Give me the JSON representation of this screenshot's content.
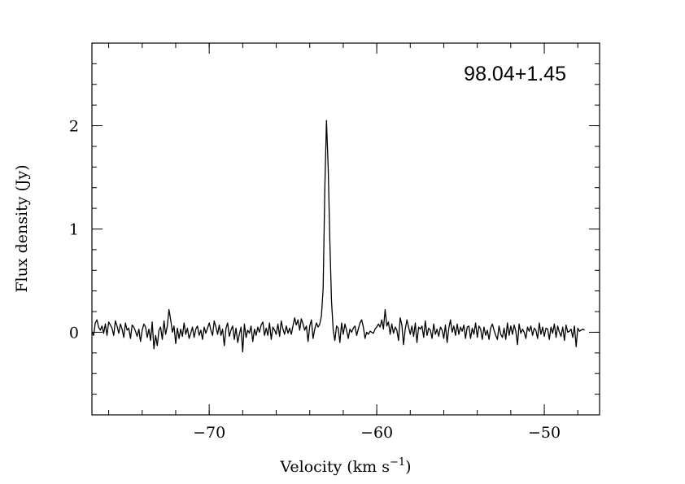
{
  "chart_data": {
    "type": "line",
    "title": "98.04+1.45",
    "xlabel": "Velocity (km s",
    "xlabel_sup": "−1",
    "xlabel_close": ")",
    "ylabel": "Flux density (Jy)",
    "xlim": [
      -77,
      -46.7
    ],
    "ylim": [
      -0.8,
      2.8
    ],
    "x_ticks": [
      {
        "value": -70,
        "label": "−70"
      },
      {
        "value": -60,
        "label": "−60"
      },
      {
        "value": -50,
        "label": "−50"
      }
    ],
    "y_ticks": [
      {
        "value": 0,
        "label": "0"
      },
      {
        "value": 1,
        "label": "1"
      },
      {
        "value": 2,
        "label": "2"
      }
    ],
    "x_minor_step": 2,
    "y_minor_step": 0.2,
    "grid": false,
    "line_color": "#000000",
    "series": [
      {
        "x_start": -77,
        "x_step": 0.1,
        "values": [
          0.0,
          -0.03,
          0.09,
          0.12,
          0.05,
          0.02,
          0.06,
          -0.01,
          0.08,
          -0.03,
          0.1,
          0.07,
          0.04,
          -0.03,
          0.11,
          0.06,
          -0.01,
          0.08,
          0.03,
          -0.05,
          0.09,
          0.02,
          0.04,
          -0.06,
          0.07,
          0.05,
          0.01,
          -0.04,
          0.03,
          -0.09,
          0.02,
          0.08,
          0.05,
          -0.05,
          0.03,
          -0.08,
          0.1,
          -0.16,
          -0.03,
          -0.13,
          0.02,
          0.05,
          -0.07,
          0.11,
          -0.02,
          0.06,
          0.22,
          0.12,
          0.0,
          0.06,
          -0.11,
          0.04,
          -0.06,
          0.03,
          -0.04,
          0.09,
          -0.02,
          0.04,
          -0.06,
          -0.01,
          0.05,
          -0.05,
          0.03,
          0.06,
          -0.03,
          0.02,
          -0.07,
          0.05,
          -0.01,
          0.04,
          0.09,
          0.02,
          -0.03,
          0.11,
          0.05,
          -0.02,
          0.07,
          -0.03,
          0.03,
          -0.13,
          0.04,
          0.09,
          -0.04,
          0.02,
          0.06,
          -0.07,
          0.04,
          -0.1,
          -0.02,
          0.05,
          -0.19,
          0.08,
          -0.05,
          0.02,
          -0.01,
          0.06,
          -0.09,
          0.03,
          -0.03,
          0.05,
          0.0,
          0.07,
          0.1,
          -0.03,
          0.04,
          -0.03,
          0.09,
          -0.07,
          0.05,
          0.02,
          -0.02,
          0.08,
          -0.04,
          0.11,
          0.03,
          -0.02,
          0.06,
          -0.01,
          0.04,
          -0.02,
          0.06,
          0.14,
          0.07,
          0.12,
          0.02,
          0.13,
          0.08,
          0.02,
          0.06,
          -0.09,
          0.06,
          0.12,
          -0.06,
          0.03,
          0.09,
          0.05,
          0.08,
          0.16,
          0.42,
          1.4,
          2.05,
          1.6,
          0.9,
          0.3,
          0.02,
          -0.08,
          0.06,
          0.04,
          -0.1,
          0.09,
          -0.02,
          0.08,
          0.02,
          -0.06,
          0.03,
          0.0,
          0.04,
          0.06,
          -0.03,
          0.03,
          0.09,
          0.12,
          0.05,
          -0.06,
          0.0,
          -0.02,
          0.01,
          0.0,
          -0.01,
          0.03,
          0.05,
          0.08,
          0.05,
          0.12,
          0.03,
          0.22,
          0.06,
          0.1,
          -0.02,
          0.08,
          -0.01,
          0.05,
          0.02,
          -0.08,
          0.14,
          0.07,
          -0.12,
          0.03,
          0.12,
          0.05,
          -0.02,
          0.06,
          -0.04,
          0.09,
          -0.1,
          0.05,
          0.03,
          0.06,
          -0.05,
          0.11,
          -0.03,
          0.04,
          0.02,
          -0.06,
          0.08,
          -0.02,
          0.03,
          -0.04,
          0.05,
          0.02,
          -0.06,
          0.07,
          -0.1,
          0.04,
          0.12,
          0.0,
          0.06,
          -0.03,
          0.08,
          -0.02,
          0.05,
          0.01,
          0.07,
          -0.06,
          0.05,
          0.06,
          -0.06,
          0.04,
          -0.02,
          0.09,
          -0.05,
          0.06,
          0.03,
          -0.07,
          0.05,
          -0.03,
          0.02,
          -0.07,
          0.04,
          0.08,
          0.02,
          -0.03,
          -0.07,
          0.06,
          -0.02,
          -0.05,
          0.04,
          -0.07,
          0.09,
          -0.03,
          0.06,
          -0.02,
          0.07,
          0.01,
          -0.12,
          0.08,
          -0.01,
          0.03,
          0.0,
          -0.06,
          0.05,
          0.01,
          0.06,
          -0.03,
          0.04,
          0.02,
          -0.06,
          0.09,
          -0.02,
          0.05,
          -0.04,
          0.04,
          0.03,
          -0.07,
          0.05,
          -0.01,
          0.08,
          -0.05,
          0.06,
          0.0,
          -0.04,
          0.05,
          -0.08,
          0.07,
          0.0,
          0.01,
          0.03,
          -0.05,
          0.06,
          -0.14,
          0.04,
          0.01,
          0.02,
          0.03,
          0.02
        ]
      }
    ]
  }
}
